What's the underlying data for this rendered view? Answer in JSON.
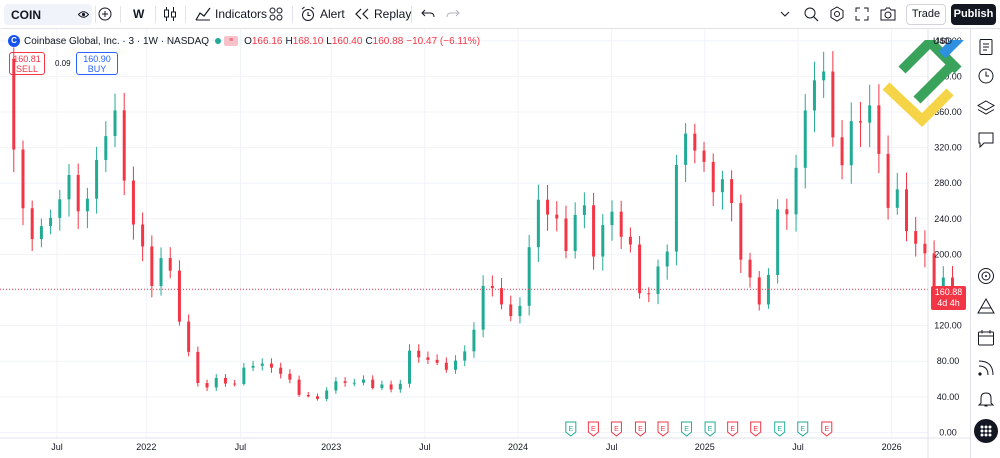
{
  "toolbar": {
    "symbol": "COIN",
    "interval": "W",
    "indicators_label": "Indicators",
    "alert_label": "Alert",
    "replay_label": "Replay",
    "trade_label": "Trade",
    "publish_label": "Publish"
  },
  "legend": {
    "title": "Coinbase Global, Inc. · 3 · 1W · NASDAQ",
    "open_key": "O",
    "open": "166.16",
    "high_key": "H",
    "high": "168.10",
    "low_key": "L",
    "low": "160.40",
    "close_key": "C",
    "close": "160.88",
    "change": "−10.47 (−6.11%)"
  },
  "trade": {
    "sell_price": "160.81",
    "sell_label": "SELL",
    "spread": "0.09",
    "buy_price": "160.90",
    "buy_label": "BUY"
  },
  "price_tag": {
    "price": "160.88",
    "countdown": "4d 4h"
  },
  "currency": "USD",
  "colors": {
    "up": "#22ab94",
    "down": "#f23645",
    "grid": "#f0f3fa",
    "axis_text": "#131722"
  },
  "icons": [
    "chevron-down-icon",
    "eye-icon",
    "plus-circle-icon",
    "candles-icon",
    "indicators-icon",
    "templates-icon",
    "alert-icon",
    "replay-icon",
    "undo-icon",
    "redo-icon",
    "search-icon",
    "settings-icon",
    "camera-icon",
    "watchlist-icon",
    "clock-icon",
    "layers-icon",
    "chat-icon",
    "target-icon",
    "pattern-icon",
    "calendar-icon",
    "feed-icon",
    "bell-icon",
    "grid-icon"
  ],
  "chart_data": {
    "type": "candlestick",
    "y_ticks": [
      "0.00",
      "40.00",
      "80.00",
      "120.00",
      "160.00",
      "200.00",
      "240.00",
      "280.00",
      "320.00",
      "360.00",
      "400.00",
      "440.00"
    ],
    "ylim": [
      -4,
      442
    ],
    "x_ticks": [
      {
        "label": "Jul",
        "t": 0.0
      },
      {
        "label": "2022",
        "t": 0.186
      },
      {
        "label": "Jul",
        "t": 0.382
      },
      {
        "label": "2023",
        "t": 0.571
      },
      {
        "label": "Jul",
        "t": 0.766
      },
      {
        "label": "2024",
        "t": 0.96
      },
      {
        "label": "Jul",
        "t": 1.155
      },
      {
        "label": "2025",
        "t": 1.349
      },
      {
        "label": "Jul",
        "t": 1.543
      },
      {
        "label": "2026",
        "t": 1.738
      }
    ],
    "earnings_markers": [
      {
        "t": 1.07,
        "kind": "up"
      },
      {
        "t": 1.117,
        "kind": "down"
      },
      {
        "t": 1.165,
        "kind": "down"
      },
      {
        "t": 1.215,
        "kind": "down"
      },
      {
        "t": 1.262,
        "kind": "down"
      },
      {
        "t": 1.311,
        "kind": "up"
      },
      {
        "t": 1.36,
        "kind": "up"
      },
      {
        "t": 1.407,
        "kind": "down"
      },
      {
        "t": 1.455,
        "kind": "down"
      },
      {
        "t": 1.505,
        "kind": "up"
      },
      {
        "t": 1.553,
        "kind": "up"
      },
      {
        "t": 1.603,
        "kind": "down"
      }
    ],
    "last_price": 160.88,
    "price_path": [
      [
        -0.09,
        420
      ],
      [
        -0.082,
        380
      ],
      [
        -0.07,
        300
      ],
      [
        -0.058,
        250
      ],
      [
        -0.045,
        225
      ],
      [
        -0.03,
        240
      ],
      [
        -0.015,
        230
      ],
      [
        0.0,
        235
      ],
      [
        0.02,
        265
      ],
      [
        0.04,
        260
      ],
      [
        0.055,
        275
      ],
      [
        0.07,
        250
      ],
      [
        0.085,
        275
      ],
      [
        0.1,
        300
      ],
      [
        0.115,
        335
      ],
      [
        0.125,
        360
      ],
      [
        0.135,
        345
      ],
      [
        0.145,
        320
      ],
      [
        0.155,
        290
      ],
      [
        0.165,
        265
      ],
      [
        0.18,
        245
      ],
      [
        0.195,
        210
      ],
      [
        0.21,
        180
      ],
      [
        0.225,
        170
      ],
      [
        0.24,
        195
      ],
      [
        0.255,
        170
      ],
      [
        0.265,
        150
      ],
      [
        0.28,
        120
      ],
      [
        0.295,
        85
      ],
      [
        0.31,
        60
      ],
      [
        0.325,
        50
      ],
      [
        0.345,
        55
      ],
      [
        0.365,
        58
      ],
      [
        0.385,
        52
      ],
      [
        0.4,
        60
      ],
      [
        0.415,
        85
      ],
      [
        0.43,
        80
      ],
      [
        0.45,
        70
      ],
      [
        0.47,
        72
      ],
      [
        0.49,
        65
      ],
      [
        0.51,
        55
      ],
      [
        0.53,
        42
      ],
      [
        0.55,
        38
      ],
      [
        0.565,
        35
      ],
      [
        0.58,
        48
      ],
      [
        0.6,
        55
      ],
      [
        0.62,
        60
      ],
      [
        0.64,
        58
      ],
      [
        0.66,
        55
      ],
      [
        0.68,
        50
      ],
      [
        0.7,
        52
      ],
      [
        0.72,
        48
      ],
      [
        0.74,
        65
      ],
      [
        0.755,
        90
      ],
      [
        0.77,
        85
      ],
      [
        0.79,
        80
      ],
      [
        0.81,
        75
      ],
      [
        0.83,
        78
      ],
      [
        0.85,
        80
      ],
      [
        0.87,
        90
      ],
      [
        0.89,
        120
      ],
      [
        0.905,
        150
      ],
      [
        0.92,
        175
      ],
      [
        0.935,
        170
      ],
      [
        0.95,
        140
      ],
      [
        0.96,
        125
      ],
      [
        0.975,
        130
      ],
      [
        0.99,
        160
      ],
      [
        1.005,
        200
      ],
      [
        1.02,
        260
      ],
      [
        1.035,
        275
      ],
      [
        1.05,
        250
      ],
      [
        1.065,
        225
      ],
      [
        1.08,
        210
      ],
      [
        1.095,
        230
      ],
      [
        1.11,
        250
      ],
      [
        1.125,
        230
      ],
      [
        1.14,
        210
      ],
      [
        1.155,
        230
      ],
      [
        1.17,
        260
      ],
      [
        1.185,
        240
      ],
      [
        1.2,
        210
      ],
      [
        1.215,
        190
      ],
      [
        1.23,
        165
      ],
      [
        1.245,
        155
      ],
      [
        1.26,
        165
      ],
      [
        1.275,
        195
      ],
      [
        1.29,
        215
      ],
      [
        1.305,
        260
      ],
      [
        1.32,
        320
      ],
      [
        1.335,
        340
      ],
      [
        1.35,
        330
      ],
      [
        1.365,
        300
      ],
      [
        1.38,
        285
      ],
      [
        1.395,
        300
      ],
      [
        1.41,
        260
      ],
      [
        1.425,
        240
      ],
      [
        1.44,
        210
      ],
      [
        1.455,
        180
      ],
      [
        1.47,
        160
      ],
      [
        1.485,
        150
      ],
      [
        1.5,
        180
      ],
      [
        1.515,
        215
      ],
      [
        1.53,
        260
      ],
      [
        1.545,
        245
      ],
      [
        1.56,
        300
      ],
      [
        1.575,
        360
      ],
      [
        1.59,
        410
      ],
      [
        1.6,
        440
      ],
      [
        1.61,
        400
      ],
      [
        1.625,
        340
      ],
      [
        1.64,
        320
      ],
      [
        1.655,
        300
      ],
      [
        1.67,
        330
      ],
      [
        1.685,
        380
      ],
      [
        1.7,
        390
      ],
      [
        1.715,
        350
      ],
      [
        1.73,
        300
      ],
      [
        1.745,
        260
      ],
      [
        1.76,
        250
      ],
      [
        1.775,
        265
      ],
      [
        1.79,
        240
      ],
      [
        1.805,
        225
      ],
      [
        1.82,
        200
      ],
      [
        1.835,
        175
      ],
      [
        1.85,
        160
      ],
      [
        1.865,
        165
      ],
      [
        1.875,
        160.88
      ]
    ]
  }
}
